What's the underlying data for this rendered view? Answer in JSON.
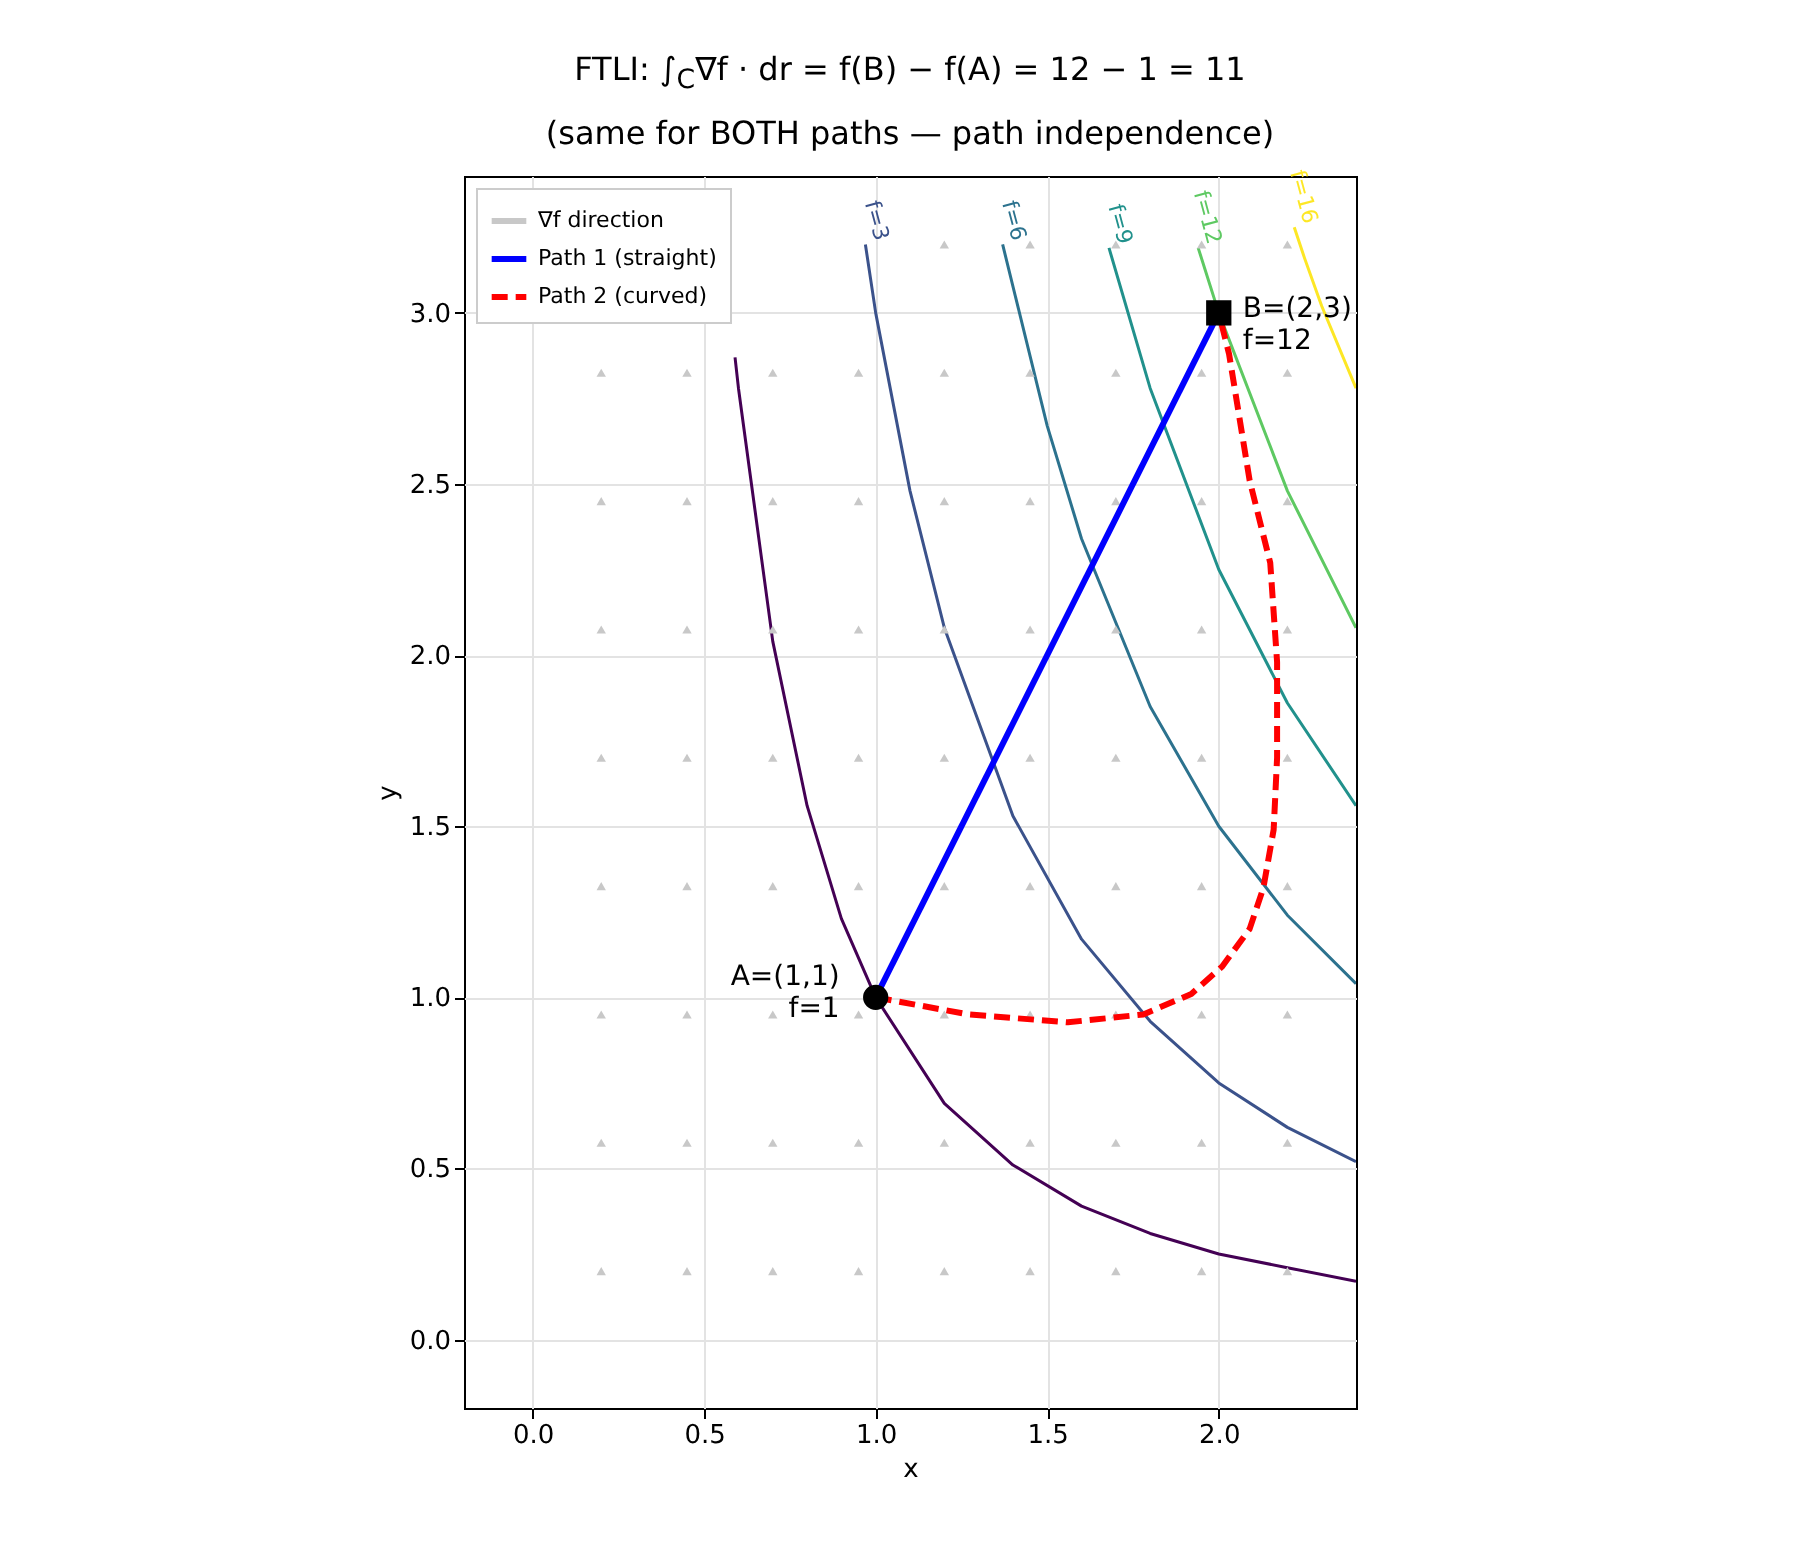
{
  "chart_data": {
    "type": "line",
    "title": "FTLI: ∫$_{C}$∇f · dr = f(B) − f(A) = 12 − 1 = 11",
    "subtitle": "(same for BOTH paths — path independence)",
    "xlabel": "x",
    "ylabel": "y",
    "xlim": [
      -0.2,
      2.4
    ],
    "ylim": [
      -0.2,
      3.4
    ],
    "xticks": [
      {
        "value": 0,
        "label": "0.0"
      },
      {
        "value": 0.5,
        "label": "0.5"
      },
      {
        "value": 1,
        "label": "1.0"
      },
      {
        "value": 1.5,
        "label": "1.5"
      },
      {
        "value": 2,
        "label": "2.0"
      }
    ],
    "yticks": [
      {
        "value": 0,
        "label": "0.0"
      },
      {
        "value": 0.5,
        "label": "0.5"
      },
      {
        "value": 1,
        "label": "1.0"
      },
      {
        "value": 1.5,
        "label": "1.5"
      },
      {
        "value": 2,
        "label": "2.0"
      },
      {
        "value": 2.5,
        "label": "2.5"
      },
      {
        "value": 3,
        "label": "3.0"
      }
    ],
    "grid": true,
    "legend": "top left",
    "series": [
      {
        "color": "#440154",
        "x": [
          0.59,
          0.6,
          0.7,
          0.8,
          0.9,
          1.0,
          1.2,
          1.4,
          1.6,
          1.8,
          2.0,
          2.2,
          2.4
        ],
        "values": [
          2.87,
          2.78,
          2.04,
          1.56,
          1.23,
          1.0,
          0.69,
          0.51,
          0.39,
          0.31,
          0.25,
          0.21,
          0.17
        ]
      },
      {
        "color": "#3b528b",
        "x": [
          0.97,
          1.0,
          1.1,
          1.2,
          1.4,
          1.6,
          1.8,
          2.0,
          2.2,
          2.4
        ],
        "values": [
          3.2,
          3.0,
          2.48,
          2.08,
          1.53,
          1.17,
          0.93,
          0.75,
          0.62,
          0.52
        ]
      },
      {
        "color": "#2c728e",
        "x": [
          1.37,
          1.5,
          1.6,
          1.8,
          2.0,
          2.2,
          2.4
        ],
        "values": [
          3.2,
          2.67,
          2.34,
          1.85,
          1.5,
          1.24,
          1.04
        ]
      },
      {
        "color": "#21918c",
        "x": [
          1.68,
          1.8,
          2.0,
          2.2,
          2.4
        ],
        "values": [
          3.19,
          2.78,
          2.25,
          1.86,
          1.56
        ]
      },
      {
        "color": "#5ec962",
        "x": [
          1.94,
          2.0,
          2.2,
          2.4
        ],
        "values": [
          3.19,
          3.0,
          2.48,
          2.08
        ]
      },
      {
        "color": "#fde725",
        "x": [
          2.22,
          2.25,
          2.3,
          2.4
        ],
        "values": [
          3.25,
          3.16,
          3.02,
          2.78
        ]
      },
      {
        "type": "scatter",
        "name": "∇f direction",
        "color": "#c8c8c8",
        "marker": "triangle",
        "x": [
          0.2,
          0.45,
          0.7,
          0.95,
          1.2,
          1.45,
          1.7,
          1.95,
          2.2,
          0.2,
          0.45,
          0.7,
          0.95,
          1.2,
          1.45,
          1.7,
          1.95,
          2.2,
          0.2,
          0.45,
          0.7,
          0.95,
          1.2,
          1.45,
          1.7,
          1.95,
          2.2,
          0.2,
          0.45,
          0.7,
          0.95,
          1.2,
          1.45,
          1.7,
          1.95,
          2.2,
          0.2,
          0.45,
          0.7,
          0.95,
          1.2,
          1.45,
          1.7,
          1.95,
          2.2,
          0.2,
          0.45,
          0.7,
          0.95,
          1.2,
          1.45,
          1.7,
          1.95,
          2.2,
          0.2,
          0.45,
          0.7,
          0.95,
          1.2,
          1.45,
          1.7,
          1.95,
          2.2,
          0.2,
          0.45,
          0.7,
          0.95,
          1.2,
          1.45,
          1.7,
          1.95,
          2.2,
          null,
          null,
          null,
          null,
          1.2,
          1.45,
          1.7,
          1.95,
          2.2
        ],
        "values": [
          0.2,
          0.2,
          0.2,
          0.2,
          0.2,
          0.2,
          0.2,
          0.2,
          0.2,
          0.575,
          0.575,
          0.575,
          0.575,
          0.575,
          0.575,
          0.575,
          0.575,
          0.575,
          0.95,
          0.95,
          0.95,
          0.95,
          0.95,
          0.95,
          0.95,
          0.95,
          0.95,
          1.325,
          1.325,
          1.325,
          1.325,
          1.325,
          1.325,
          1.325,
          1.325,
          1.325,
          1.7,
          1.7,
          1.7,
          1.7,
          1.7,
          1.7,
          1.7,
          1.7,
          1.7,
          2.075,
          2.075,
          2.075,
          2.075,
          2.075,
          2.075,
          2.075,
          2.075,
          2.075,
          2.45,
          2.45,
          2.45,
          2.45,
          2.45,
          2.45,
          2.45,
          2.45,
          2.45,
          2.825,
          2.825,
          2.825,
          2.825,
          2.825,
          2.825,
          2.825,
          2.825,
          2.825,
          null,
          null,
          null,
          null,
          3.2,
          3.2,
          3.2,
          3.2,
          3.2
        ]
      },
      {
        "name": "Path 1 (straight)",
        "color": "#0000ff",
        "line_style": "solid",
        "x": [
          1,
          2
        ],
        "values": [
          1,
          3
        ]
      },
      {
        "name": "Path 2 (curved)",
        "color": "#ff0000",
        "line_style": "dashed",
        "x": [
          1,
          1.27,
          1.56,
          1.78,
          1.92,
          2.01,
          2.09,
          2.13,
          2.16,
          2.17,
          2.17,
          2.15,
          2.09,
          2.03,
          2.0
        ],
        "values": [
          1,
          0.95,
          0.927,
          0.95,
          1.01,
          1.09,
          1.2,
          1.32,
          1.49,
          1.7,
          1.98,
          2.27,
          2.51,
          2.88,
          3.0
        ]
      },
      {
        "type": "scatter",
        "color": "#000000",
        "marker": "circle",
        "x": [
          1
        ],
        "values": [
          1
        ],
        "value_labels": [
          "A=(1,1)\n f=1"
        ]
      },
      {
        "type": "scatter",
        "color": "#000000",
        "marker": "square",
        "x": [
          2
        ],
        "values": [
          3
        ],
        "value_labels": [
          "B=(2,3)\n f=12"
        ]
      }
    ],
    "annotations": [
      {
        "text": "f=3",
        "x": 0.97,
        "y": 3.2
      },
      {
        "text": "f=6",
        "x": 1.37,
        "y": 3.2
      },
      {
        "text": "f=9",
        "x": 1.68,
        "y": 3.19
      },
      {
        "text": "f=12",
        "x": 1.94,
        "y": 3.19
      },
      {
        "text": "f=16",
        "x": 2.22,
        "y": 3.25
      }
    ]
  }
}
